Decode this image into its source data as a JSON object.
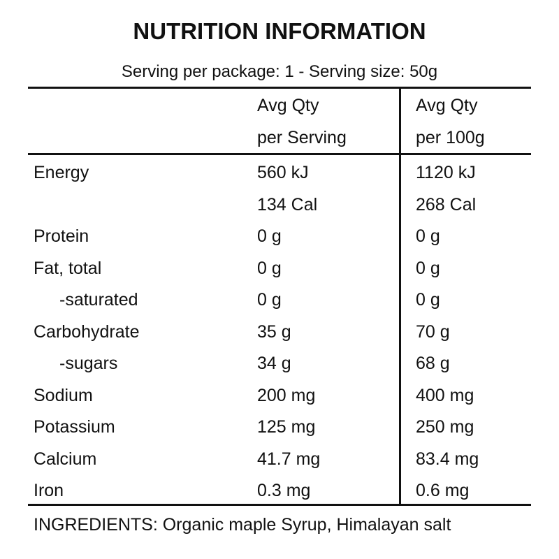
{
  "header": {
    "title": "NUTRITION INFORMATION",
    "subtitle": "Serving per package: 1 - Serving size: 50g"
  },
  "table": {
    "columns": [
      [
        "Avg Qty",
        "per Serving"
      ],
      [
        "Avg Qty",
        "per 100g"
      ]
    ],
    "rows": [
      {
        "label": "Energy",
        "per_serving": [
          "560 kJ",
          "134 Cal"
        ],
        "per_100g": [
          "1120 kJ",
          "268 Cal"
        ]
      },
      {
        "label": "Protein",
        "per_serving": [
          "0 g"
        ],
        "per_100g": [
          "0 g"
        ]
      },
      {
        "label": "Fat, total",
        "per_serving": [
          "0 g"
        ],
        "per_100g": [
          "0 g"
        ]
      },
      {
        "label": "-saturated",
        "per_serving": [
          "0 g"
        ],
        "per_100g": [
          "0 g"
        ]
      },
      {
        "label": "Carbohydrate",
        "per_serving": [
          "35 g"
        ],
        "per_100g": [
          "70 g"
        ]
      },
      {
        "label": "-sugars",
        "per_serving": [
          "34 g"
        ],
        "per_100g": [
          "68 g"
        ]
      },
      {
        "label": "Sodium",
        "per_serving": [
          "200 mg"
        ],
        "per_100g": [
          "400 mg"
        ]
      },
      {
        "label": "Potassium",
        "per_serving": [
          "125 mg"
        ],
        "per_100g": [
          "250 mg"
        ]
      },
      {
        "label": "Calcium",
        "per_serving": [
          "41.7 mg"
        ],
        "per_100g": [
          "83.4 mg"
        ]
      },
      {
        "label": "Iron",
        "per_serving": [
          "0.3 mg"
        ],
        "per_100g": [
          "0.6 mg"
        ]
      }
    ]
  },
  "ingredients": "INGREDIENTS: Organic maple Syrup, Himalayan salt"
}
